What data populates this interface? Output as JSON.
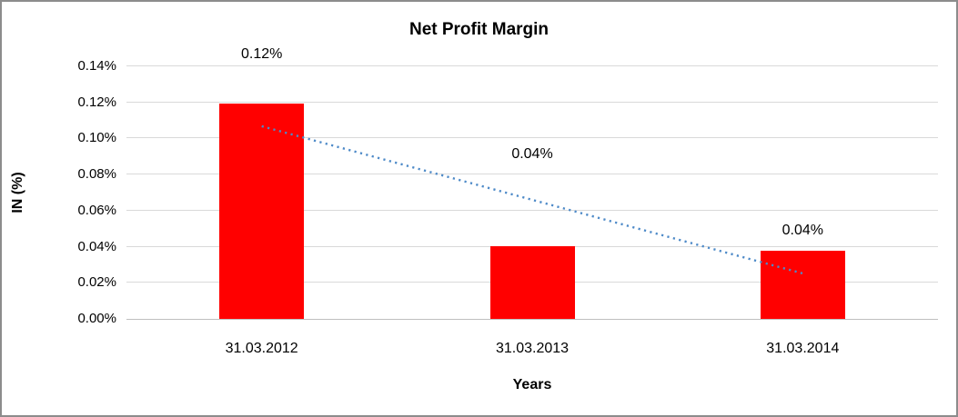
{
  "chart_data": {
    "type": "bar",
    "title": "Net Profit Margin",
    "xlabel": "Years",
    "ylabel": "IN (%)",
    "categories": [
      "31.03.2012",
      "31.03.2013",
      "31.03.2014"
    ],
    "values": [
      0.1194,
      0.0403,
      0.0378
    ],
    "data_labels": [
      "0.12%",
      "0.04%",
      "0.04%"
    ],
    "data_label_positions": [
      0.1465,
      0.0911,
      0.0489
    ],
    "ylim": [
      0,
      0.14
    ],
    "ytick_step": 0.02,
    "ytick_labels": [
      "0.00%",
      "0.02%",
      "0.04%",
      "0.06%",
      "0.08%",
      "0.10%",
      "0.12%",
      "0.14%"
    ],
    "grid": true,
    "legend": false,
    "bar_color": "#FF0000",
    "gridline_color": "#D9D9D9",
    "axis_line_color": "#BFBFBF",
    "trendline": {
      "type": "linear",
      "style": "dotted",
      "color": "#4E8AC8",
      "start_value": 0.1068,
      "end_value": 0.0252
    }
  }
}
